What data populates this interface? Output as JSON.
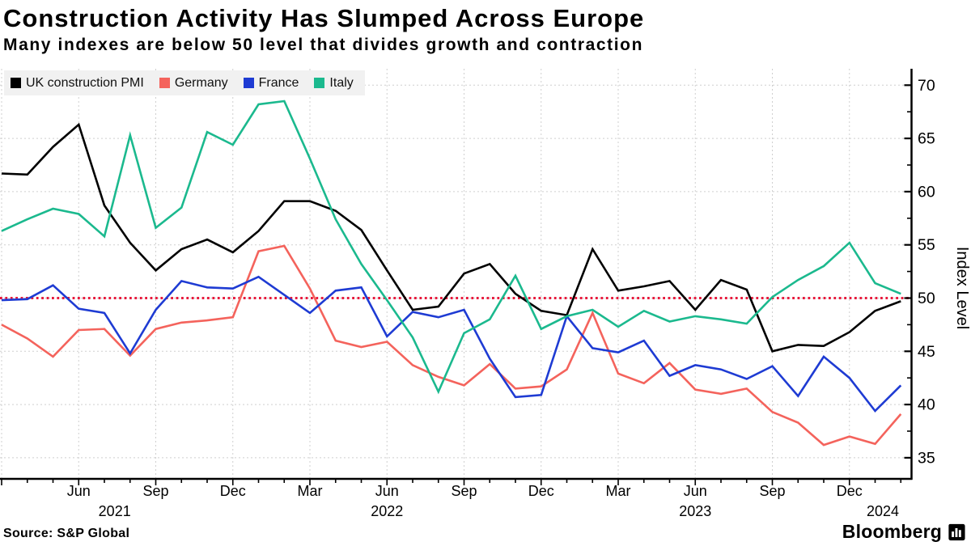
{
  "header": {
    "title": "Construction Activity Has Slumped Across Europe",
    "subtitle": "Many indexes are below 50 level that divides growth and contraction"
  },
  "chart_data": {
    "type": "line",
    "title": "Construction Activity Has Slumped Across Europe",
    "subtitle": "Many indexes are below 50 level that divides growth and contraction",
    "xlabel": "",
    "ylabel": "Index Level",
    "ylim": [
      33,
      71.5
    ],
    "yticks": [
      35,
      40,
      45,
      50,
      55,
      60,
      65,
      70
    ],
    "grid": true,
    "legend_position": "top-left",
    "reference_line": {
      "value": 50,
      "color": "#e8193c",
      "style": "dotted"
    },
    "months": [
      "Mar 2021",
      "Apr 2021",
      "May 2021",
      "Jun 2021",
      "Jul 2021",
      "Aug 2021",
      "Sep 2021",
      "Oct 2021",
      "Nov 2021",
      "Dec 2021",
      "Jan 2022",
      "Feb 2022",
      "Mar 2022",
      "Apr 2022",
      "May 2022",
      "Jun 2022",
      "Jul 2022",
      "Aug 2022",
      "Sep 2022",
      "Oct 2022",
      "Nov 2022",
      "Dec 2022",
      "Jan 2023",
      "Feb 2023",
      "Mar 2023",
      "Apr 2023",
      "May 2023",
      "Jun 2023",
      "Jul 2023",
      "Aug 2023",
      "Sep 2023",
      "Oct 2023",
      "Nov 2023",
      "Dec 2023",
      "Jan 2024",
      "Feb 2024"
    ],
    "series": [
      {
        "name": "UK construction PMI",
        "color": "#000000",
        "values": [
          61.7,
          61.6,
          64.2,
          66.3,
          58.7,
          55.2,
          52.6,
          54.6,
          55.5,
          54.3,
          56.3,
          59.1,
          59.1,
          58.2,
          56.4,
          52.6,
          48.9,
          49.2,
          52.3,
          53.2,
          50.4,
          48.8,
          48.4,
          54.6,
          50.7,
          51.1,
          51.6,
          48.9,
          51.7,
          50.8,
          45.0,
          45.6,
          45.5,
          46.8,
          48.8,
          49.7
        ]
      },
      {
        "name": "Germany",
        "color": "#f4635c",
        "values": [
          47.5,
          46.2,
          44.5,
          47.0,
          47.1,
          44.6,
          47.1,
          47.7,
          47.9,
          48.2,
          54.4,
          54.9,
          50.9,
          46.0,
          45.4,
          45.9,
          43.7,
          42.6,
          41.8,
          43.8,
          41.5,
          41.7,
          43.3,
          48.6,
          42.9,
          42.0,
          43.9,
          41.4,
          41.0,
          41.5,
          39.3,
          38.3,
          36.2,
          37.0,
          36.3,
          39.1
        ]
      },
      {
        "name": "France",
        "color": "#1e3bd3",
        "values": [
          49.8,
          49.9,
          51.2,
          49.0,
          48.6,
          44.8,
          48.9,
          51.6,
          51.0,
          50.9,
          52.0,
          50.3,
          48.6,
          50.7,
          51.0,
          46.4,
          48.7,
          48.2,
          48.9,
          44.3,
          40.7,
          40.9,
          48.3,
          45.3,
          44.9,
          46.0,
          42.7,
          43.7,
          43.3,
          42.4,
          43.6,
          40.8,
          44.5,
          42.5,
          39.4,
          41.8
        ]
      },
      {
        "name": "Italy",
        "color": "#1bb98e",
        "values": [
          56.3,
          57.4,
          58.4,
          57.9,
          55.8,
          65.3,
          56.6,
          58.5,
          65.6,
          64.4,
          68.2,
          68.5,
          63.1,
          57.4,
          53.2,
          49.8,
          46.3,
          41.2,
          46.7,
          48.0,
          52.1,
          47.1,
          48.3,
          48.9,
          47.3,
          48.8,
          47.8,
          48.3,
          48.0,
          47.6,
          50.1,
          51.7,
          53.0,
          55.2,
          51.4,
          50.4
        ]
      }
    ],
    "x_ticks": [
      {
        "i": 3,
        "label": "Jun"
      },
      {
        "i": 6,
        "label": "Sep"
      },
      {
        "i": 9,
        "label": "Dec"
      },
      {
        "i": 12,
        "label": "Mar"
      },
      {
        "i": 15,
        "label": "Jun"
      },
      {
        "i": 18,
        "label": "Sep"
      },
      {
        "i": 21,
        "label": "Dec"
      },
      {
        "i": 24,
        "label": "Mar"
      },
      {
        "i": 27,
        "label": "Jun"
      },
      {
        "i": 30,
        "label": "Sep"
      },
      {
        "i": 33,
        "label": "Dec"
      }
    ],
    "year_labels": [
      {
        "i": 4.4,
        "label": "2021"
      },
      {
        "i": 15,
        "label": "2022"
      },
      {
        "i": 27,
        "label": "2023"
      },
      {
        "i": 34.3,
        "label": "2024"
      }
    ],
    "colors": {
      "grid": "#cfcfcf",
      "axis": "#000000",
      "legend_bg": "#f1f1f1",
      "reference": "#e8193c"
    }
  },
  "footer": {
    "source": "Source: S&P Global",
    "brand_name": "Bloomberg"
  }
}
